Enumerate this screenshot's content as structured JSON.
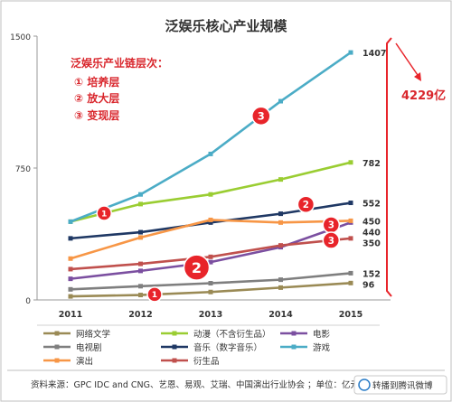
{
  "chart_data": {
    "type": "line",
    "title": "泛娱乐核心产业规模",
    "x": [
      "2011",
      "2012",
      "2013",
      "2014",
      "2015"
    ],
    "ylim": [
      0,
      1500
    ],
    "yticks": [
      "0",
      "750",
      "1500"
    ],
    "grid": false,
    "legend_position": "bottom",
    "series": [
      {
        "name": "网络文学",
        "color": "#9a8a55",
        "values": [
          20,
          28,
          45,
          70,
          96
        ],
        "end_label": "96",
        "level": 1
      },
      {
        "name": "动漫（不含衍生品）",
        "color": "#9acd32",
        "values": [
          445,
          545,
          600,
          685,
          782
        ],
        "end_label": "782",
        "level": 1
      },
      {
        "name": "电影",
        "color": "#7b4fa0",
        "values": [
          120,
          165,
          215,
          300,
          440
        ],
        "end_label": "440",
        "level": 2
      },
      {
        "name": "电视剧",
        "color": "#7f7f7f",
        "values": [
          60,
          78,
          95,
          115,
          152
        ],
        "end_label": "152",
        "level": 2
      },
      {
        "name": "音乐（数字音乐）",
        "color": "#1f3864",
        "values": [
          350,
          385,
          440,
          490,
          552
        ],
        "end_label": "552",
        "level": 2
      },
      {
        "name": "游戏",
        "color": "#4bacc6",
        "values": [
          445,
          600,
          830,
          1130,
          1407
        ],
        "end_label": "1407",
        "level": 3
      },
      {
        "name": "演出",
        "color": "#f79646",
        "values": [
          235,
          355,
          455,
          440,
          450
        ],
        "end_label": "450",
        "level": 3
      },
      {
        "name": "衍生品",
        "color": "#c0504d",
        "values": [
          175,
          205,
          245,
          310,
          350
        ],
        "end_label": "350",
        "level": 3
      }
    ],
    "annotation": {
      "heading": "泛娱乐产业链层次：",
      "levels": [
        "① 培养层",
        "② 放大层",
        "③ 变现层"
      ],
      "badges": [
        "1",
        "2",
        "3"
      ],
      "badge_color": "#e8242a",
      "text_color": "#d9262c"
    },
    "total_label": "4229亿"
  },
  "footer": {
    "source": "资料来源：GPC IDC and CNG、艺恩、易观、艾瑞、中国演出行业协会  ；单位：亿元",
    "watermark": "转播到腾讯微博"
  }
}
